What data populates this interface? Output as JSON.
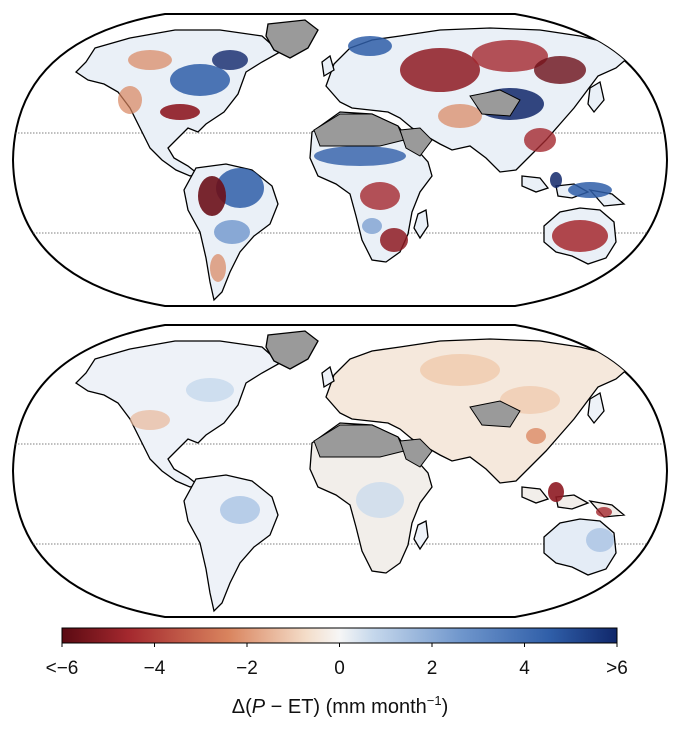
{
  "figure": {
    "panels": [
      {
        "id": "upper-map"
      },
      {
        "id": "lower-map"
      }
    ],
    "colorbar": {
      "ticks": [
        "<−6",
        "−4",
        "−2",
        "0",
        "2",
        "4",
        ">6"
      ],
      "tick_values": [
        -6,
        -4,
        -2,
        0,
        2,
        4,
        6
      ],
      "label_prefix": "Δ(",
      "label_var_p": "P",
      "label_minus_et": " − ET) (mm month",
      "label_exp": "−1",
      "label_suffix": ")",
      "range": [
        -6,
        6
      ],
      "colors": [
        "#5a0a12",
        "#a4282e",
        "#d9845e",
        "#f4ddc9",
        "#f3f6fa",
        "#c6d8ec",
        "#6f96cc",
        "#2f5ea8",
        "#10276a"
      ]
    },
    "colors": {
      "land_nodata": "#9a9a9a",
      "ocean": "#ffffff",
      "coastline": "#000000"
    }
  }
}
